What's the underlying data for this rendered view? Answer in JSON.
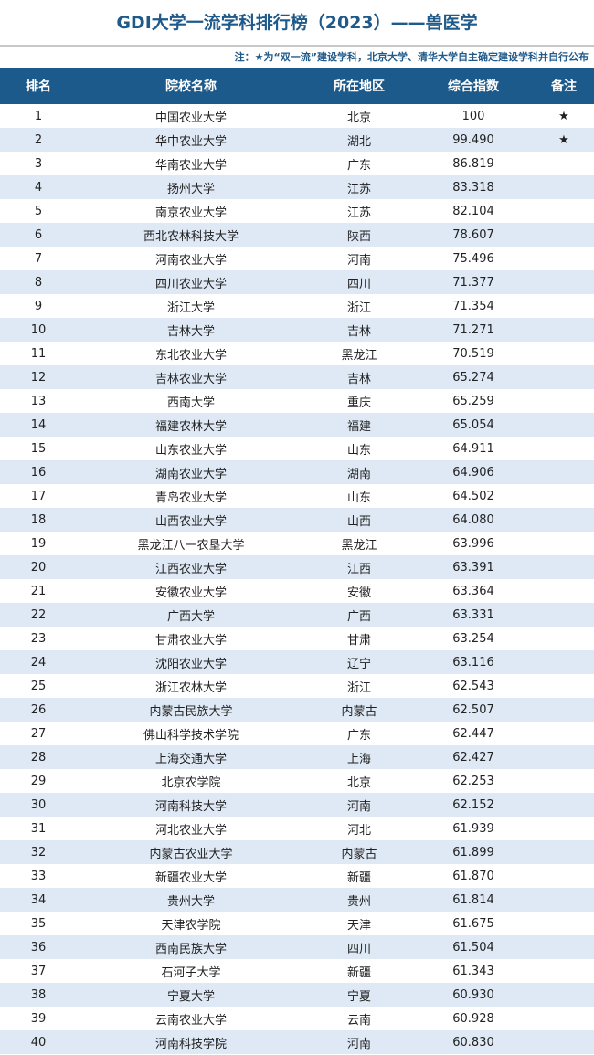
{
  "title": "GDI大学一流学科排行榜（2023）——兽医学",
  "note": "注：★为“双一流”建设学科，北京大学、清华大学自主确定建设学科并自行公布",
  "colors": {
    "header_bg": "#1d5a8c",
    "title": "#1f5a8a",
    "alt_row": "#dfe9f5"
  },
  "columns": [
    "排名",
    "院校名称",
    "所在地区",
    "综合指数",
    "备注"
  ],
  "rows": [
    [
      "1",
      "中国农业大学",
      "北京",
      "100",
      "★"
    ],
    [
      "2",
      "华中农业大学",
      "湖北",
      "99.490",
      "★"
    ],
    [
      "3",
      "华南农业大学",
      "广东",
      "86.819",
      ""
    ],
    [
      "4",
      "扬州大学",
      "江苏",
      "83.318",
      ""
    ],
    [
      "5",
      "南京农业大学",
      "江苏",
      "82.104",
      ""
    ],
    [
      "6",
      "西北农林科技大学",
      "陕西",
      "78.607",
      ""
    ],
    [
      "7",
      "河南农业大学",
      "河南",
      "75.496",
      ""
    ],
    [
      "8",
      "四川农业大学",
      "四川",
      "71.377",
      ""
    ],
    [
      "9",
      "浙江大学",
      "浙江",
      "71.354",
      ""
    ],
    [
      "10",
      "吉林大学",
      "吉林",
      "71.271",
      ""
    ],
    [
      "11",
      "东北农业大学",
      "黑龙江",
      "70.519",
      ""
    ],
    [
      "12",
      "吉林农业大学",
      "吉林",
      "65.274",
      ""
    ],
    [
      "13",
      "西南大学",
      "重庆",
      "65.259",
      ""
    ],
    [
      "14",
      "福建农林大学",
      "福建",
      "65.054",
      ""
    ],
    [
      "15",
      "山东农业大学",
      "山东",
      "64.911",
      ""
    ],
    [
      "16",
      "湖南农业大学",
      "湖南",
      "64.906",
      ""
    ],
    [
      "17",
      "青岛农业大学",
      "山东",
      "64.502",
      ""
    ],
    [
      "18",
      "山西农业大学",
      "山西",
      "64.080",
      ""
    ],
    [
      "19",
      "黑龙江八一农垦大学",
      "黑龙江",
      "63.996",
      ""
    ],
    [
      "20",
      "江西农业大学",
      "江西",
      "63.391",
      ""
    ],
    [
      "21",
      "安徽农业大学",
      "安徽",
      "63.364",
      ""
    ],
    [
      "22",
      "广西大学",
      "广西",
      "63.331",
      ""
    ],
    [
      "23",
      "甘肃农业大学",
      "甘肃",
      "63.254",
      ""
    ],
    [
      "24",
      "沈阳农业大学",
      "辽宁",
      "63.116",
      ""
    ],
    [
      "25",
      "浙江农林大学",
      "浙江",
      "62.543",
      ""
    ],
    [
      "26",
      "内蒙古民族大学",
      "内蒙古",
      "62.507",
      ""
    ],
    [
      "27",
      "佛山科学技术学院",
      "广东",
      "62.447",
      ""
    ],
    [
      "28",
      "上海交通大学",
      "上海",
      "62.427",
      ""
    ],
    [
      "29",
      "北京农学院",
      "北京",
      "62.253",
      ""
    ],
    [
      "30",
      "河南科技大学",
      "河南",
      "62.152",
      ""
    ],
    [
      "31",
      "河北农业大学",
      "河北",
      "61.939",
      ""
    ],
    [
      "32",
      "内蒙古农业大学",
      "内蒙古",
      "61.899",
      ""
    ],
    [
      "33",
      "新疆农业大学",
      "新疆",
      "61.870",
      ""
    ],
    [
      "34",
      "贵州大学",
      "贵州",
      "61.814",
      ""
    ],
    [
      "35",
      "天津农学院",
      "天津",
      "61.675",
      ""
    ],
    [
      "36",
      "西南民族大学",
      "四川",
      "61.504",
      ""
    ],
    [
      "37",
      "石河子大学",
      "新疆",
      "61.343",
      ""
    ],
    [
      "38",
      "宁夏大学",
      "宁夏",
      "60.930",
      ""
    ],
    [
      "39",
      "云南农业大学",
      "云南",
      "60.928",
      ""
    ],
    [
      "40",
      "河南科技学院",
      "河南",
      "60.830",
      ""
    ]
  ]
}
